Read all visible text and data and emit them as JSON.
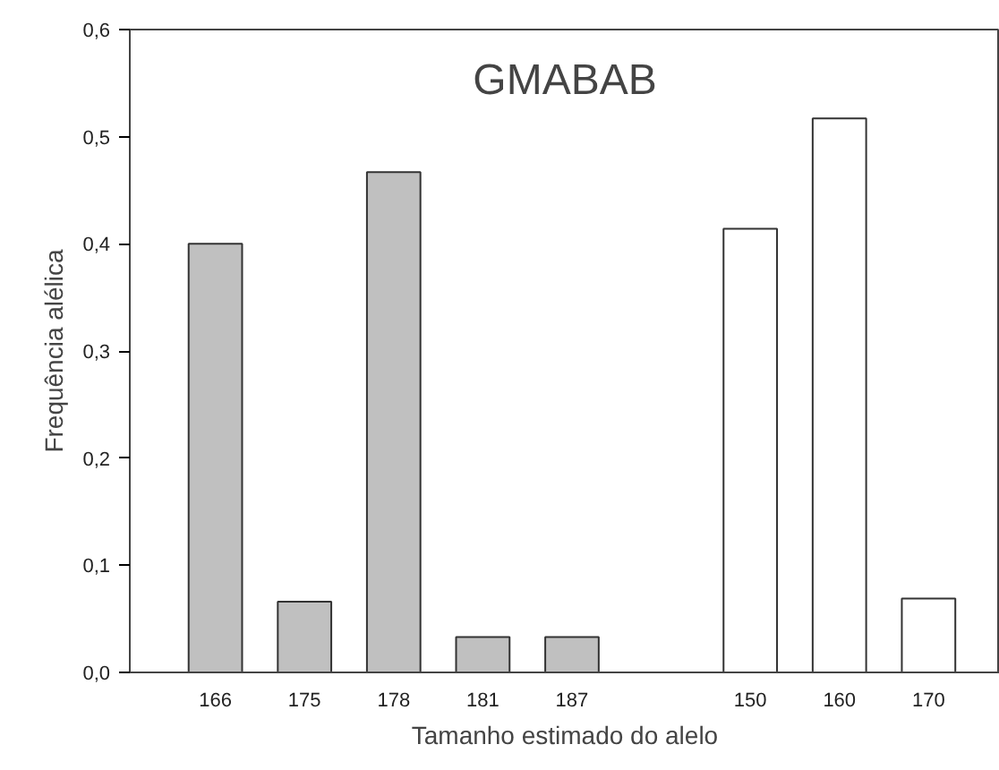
{
  "chart_data": {
    "type": "bar",
    "title": "GMABAB",
    "xlabel": "Tamanho estimado do alelo",
    "ylabel": "Frequência alélica",
    "categories": [
      "166",
      "175",
      "178",
      "181",
      "187",
      null,
      "150",
      "160",
      "170"
    ],
    "values": [
      0.4,
      0.066,
      0.467,
      0.033,
      0.033,
      null,
      0.414,
      0.517,
      0.069
    ],
    "colors": [
      "#c0c0c0",
      "#c0c0c0",
      "#c0c0c0",
      "#c0c0c0",
      "#c0c0c0",
      null,
      "#ffffff",
      "#ffffff",
      "#ffffff"
    ],
    "ylim": [
      0,
      0.6
    ],
    "yticks": [
      {
        "value": 0,
        "label": "0,0"
      },
      {
        "value": 0.1,
        "label": "0,1"
      },
      {
        "value": 0.2,
        "label": "0,2"
      },
      {
        "value": 0.3,
        "label": "0,3"
      },
      {
        "value": 0.4,
        "label": "0,4"
      },
      {
        "value": 0.5,
        "label": "0,5"
      },
      {
        "value": 0.6,
        "label": "0,6"
      }
    ],
    "grid": false
  }
}
